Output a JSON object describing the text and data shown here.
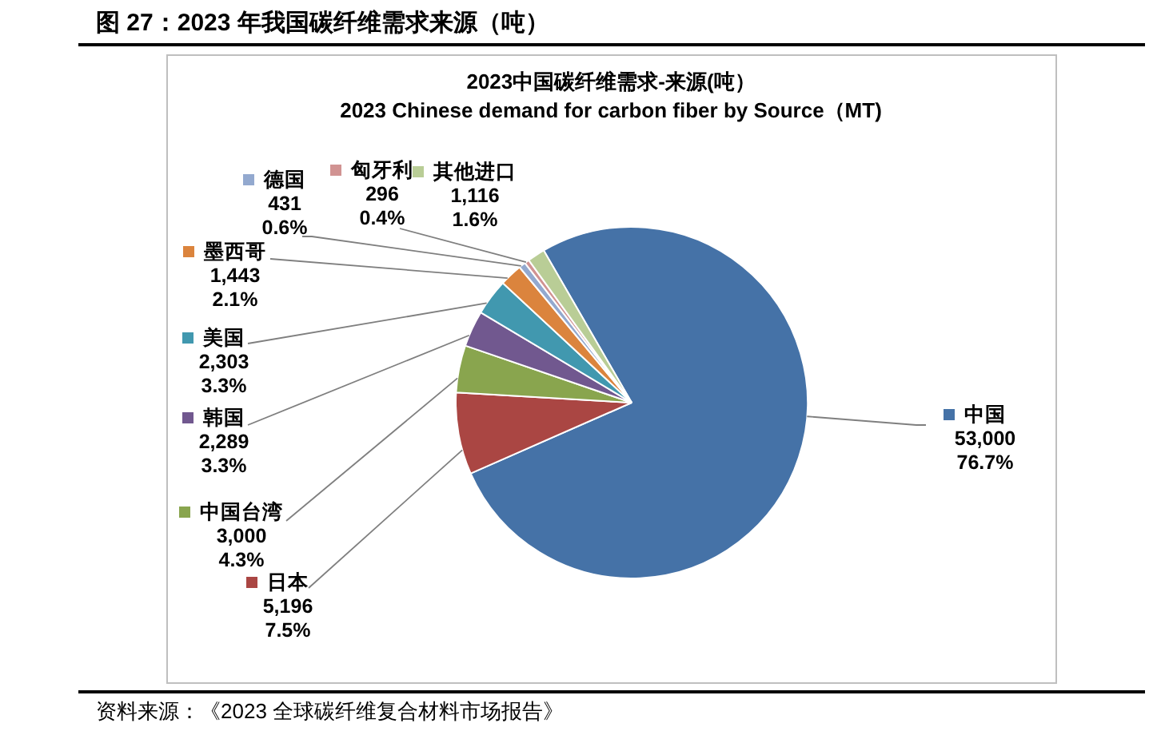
{
  "chart_data": {
    "type": "pie",
    "title": "图 27：2023 年我国碳纤维需求来源（吨）",
    "subtitle": "2023中国碳纤维需求-来源(吨）\n2023 Chinese demand for carbon fiber by Source（MT)",
    "categories": [
      "中国",
      "日本",
      "中国台湾",
      "韩国",
      "美国",
      "墨西哥",
      "德国",
      "匈牙利",
      "其他进口"
    ],
    "values": [
      53000,
      5196,
      3000,
      2289,
      2303,
      1443,
      431,
      296,
      1116
    ],
    "colors": [
      "#4572a7",
      "#aa4643",
      "#89a54e",
      "#71588f",
      "#4198af",
      "#db843d",
      "#93a9cf",
      "#d19392",
      "#b9cd96"
    ],
    "value_labels": [
      "53,000\n76.7%",
      "5,196\n7.5%",
      "3,000\n4.3%",
      "2,289\n3.3%",
      "2,303\n3.3%",
      "1,443\n2.1%",
      "431\n0.6%",
      "296\n0.4%",
      "1,116\n1.6%"
    ],
    "legend": "left",
    "annotations": [
      "资料来源：《2023 全球碳纤维复合材料市场报告》"
    ]
  }
}
